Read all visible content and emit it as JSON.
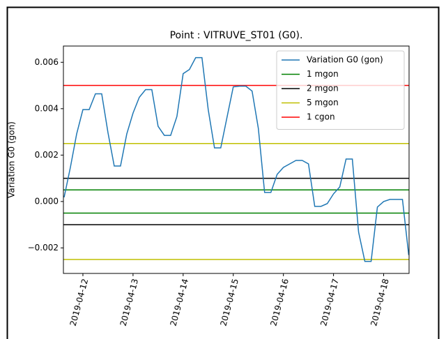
{
  "chart_data": {
    "type": "line",
    "title": "Point : VITRUVE_ST01 (G0).",
    "y_label": "Variation G0 (gon)",
    "x_start": "2019-04-11T15:00",
    "x_step_hours": 3,
    "series": [
      {
        "name": "Variation G0 (gon)",
        "color": "#1f77b4",
        "values": [
          0.00018,
          0.00147,
          0.00291,
          0.00396,
          0.00396,
          0.00464,
          0.00464,
          0.00297,
          0.00153,
          0.00153,
          0.00291,
          0.00381,
          0.00449,
          0.00482,
          0.00482,
          0.00324,
          0.00285,
          0.00285,
          0.00366,
          0.00551,
          0.00569,
          0.0062,
          0.0062,
          0.00396,
          0.00231,
          0.00231,
          0.00363,
          0.00494,
          0.00497,
          0.00497,
          0.00476,
          0.00315,
          0.00039,
          0.00039,
          0.00117,
          0.00147,
          0.00162,
          0.00177,
          0.00177,
          0.00162,
          -0.00021,
          -0.00021,
          -9e-05,
          0.00033,
          0.00063,
          0.00183,
          0.00183,
          -0.00132,
          -0.00258,
          -0.00258,
          -0.00024,
          0.0,
          9e-05,
          9e-05,
          9e-05,
          -0.00231
        ]
      }
    ],
    "hlines": [
      {
        "name": "1 mgon",
        "color": "#008000",
        "values": [
          0.0005,
          -0.0005
        ]
      },
      {
        "name": "2 mgon",
        "color": "#000000",
        "values": [
          0.001,
          -0.001
        ]
      },
      {
        "name": "5 mgon",
        "color": "#bfbf00",
        "values": [
          0.0025,
          -0.0025
        ]
      },
      {
        "name": "1 cgon",
        "color": "#ff0000",
        "values": [
          0.005
        ]
      }
    ],
    "xlim": [
      "2019-04-11T14:40",
      "2019-04-18T12:10"
    ],
    "xticks": [
      {
        "value": "2019-04-12T00:00",
        "label": "2019-04-12"
      },
      {
        "value": "2019-04-13T00:00",
        "label": "2019-04-13"
      },
      {
        "value": "2019-04-14T00:00",
        "label": "2019-04-14"
      },
      {
        "value": "2019-04-15T00:00",
        "label": "2019-04-15"
      },
      {
        "value": "2019-04-16T00:00",
        "label": "2019-04-16"
      },
      {
        "value": "2019-04-17T00:00",
        "label": "2019-04-17"
      },
      {
        "value": "2019-04-18T00:00",
        "label": "2019-04-18"
      }
    ],
    "ylim": [
      -0.0031,
      0.0067
    ],
    "yticks": [
      {
        "value": -0.002,
        "label": "−0.002"
      },
      {
        "value": 0,
        "label": "0.000"
      },
      0.002,
      0.004,
      0.006
    ],
    "legend": "upper right"
  }
}
